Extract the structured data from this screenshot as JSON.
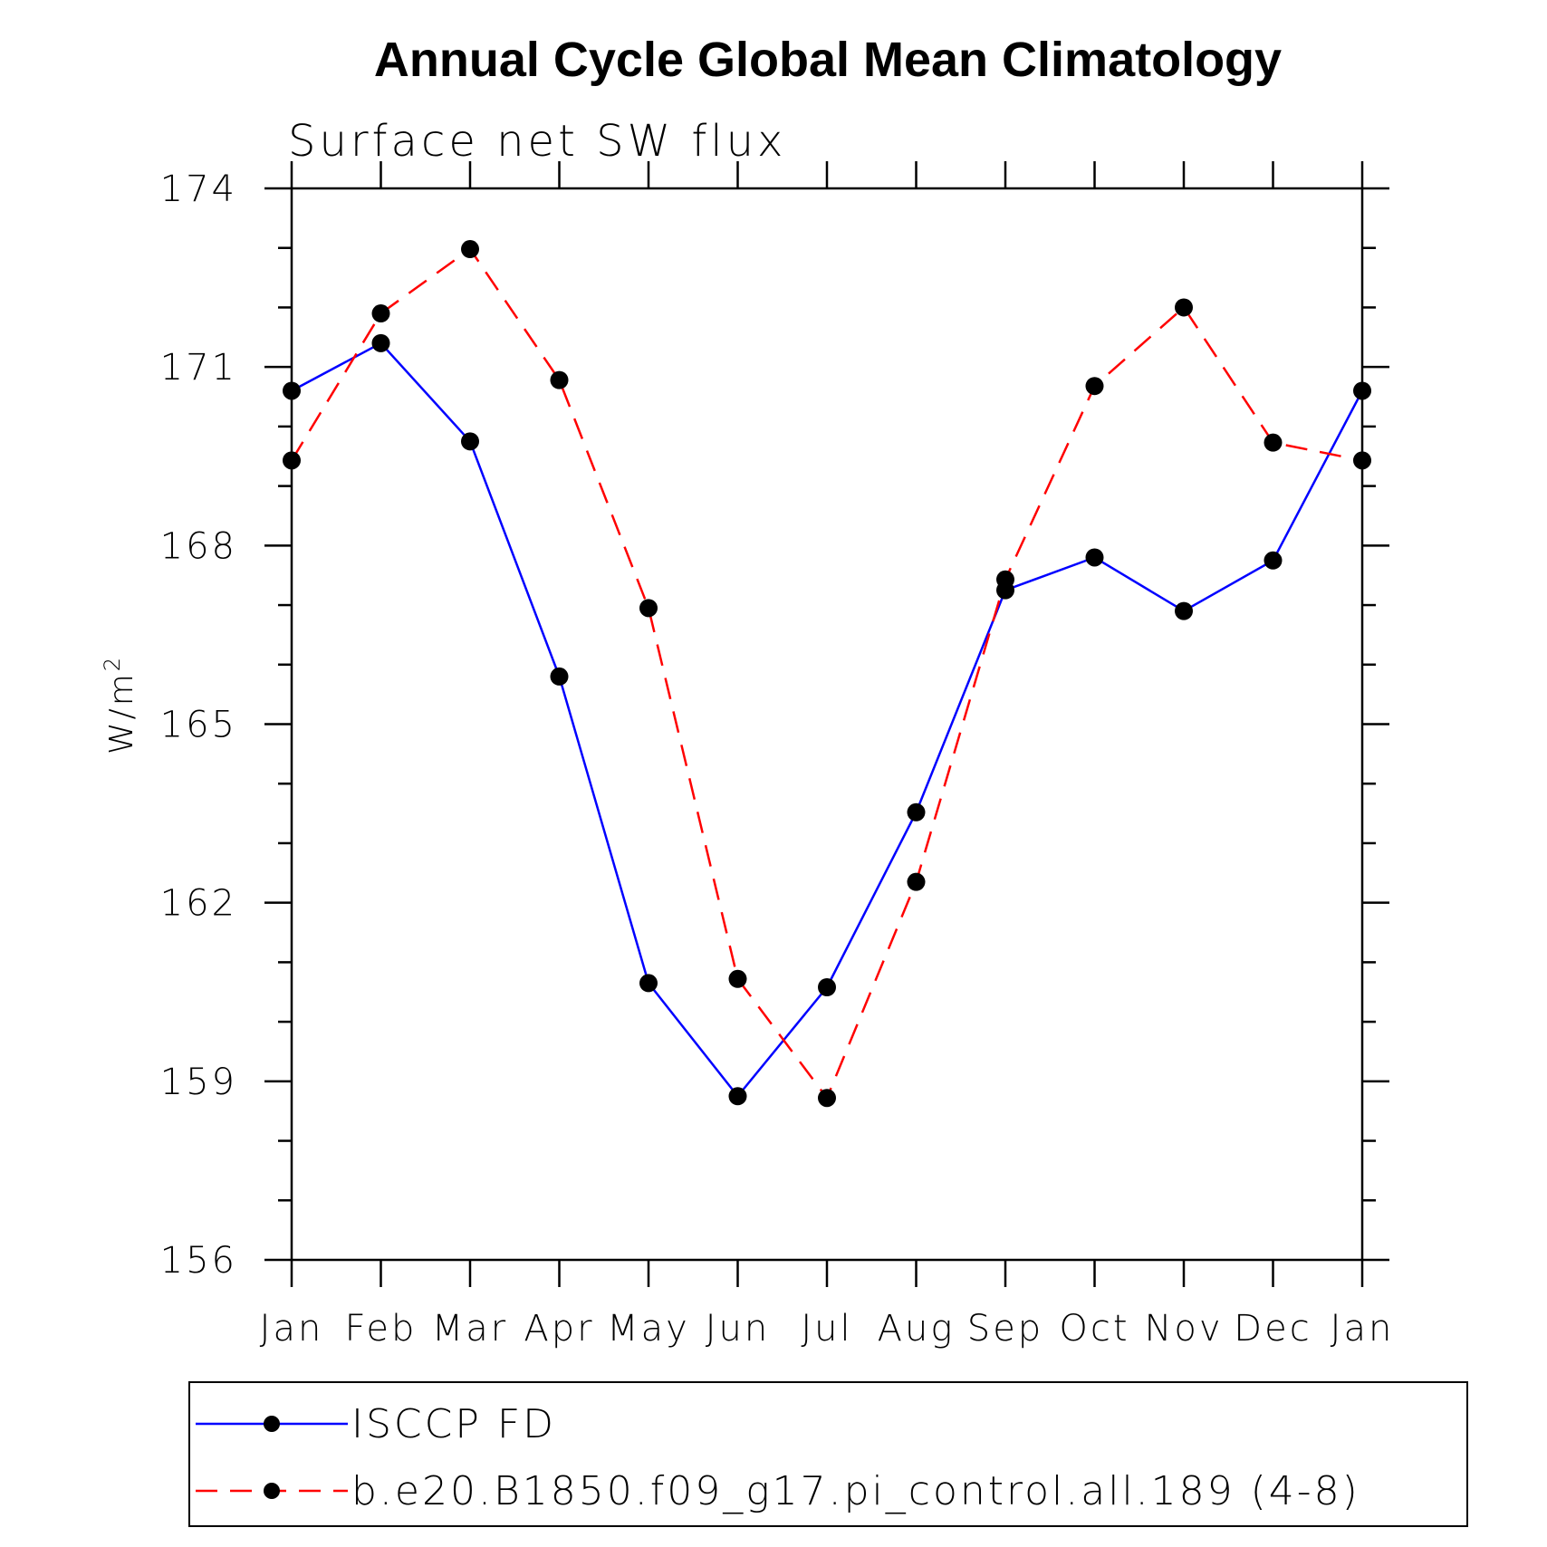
{
  "chart_data": {
    "type": "line",
    "title": "Annual Cycle Global Mean Climatology",
    "subtitle": "Surface net SW flux",
    "ylabel_base": "W/m",
    "ylabel_sup": "2",
    "ylim": [
      156,
      174
    ],
    "yticks": [
      "156",
      "159",
      "162",
      "165",
      "168",
      "171",
      "174"
    ],
    "ytick_values": [
      156,
      159,
      162,
      165,
      168,
      171,
      174
    ],
    "categories": [
      "Jan",
      "Feb",
      "Mar",
      "Apr",
      "May",
      "Jun",
      "Jul",
      "Aug",
      "Sep",
      "Oct",
      "Nov",
      "Dec",
      "Jan"
    ],
    "grid": false,
    "legend_placement": "bottom",
    "series": [
      {
        "name": "ISCCP FD",
        "color": "#0000ff",
        "dash": "solid",
        "values": [
          170.6,
          171.4,
          169.75,
          165.8,
          160.65,
          158.75,
          160.58,
          163.52,
          167.25,
          167.8,
          166.9,
          167.75,
          170.6
        ]
      },
      {
        "name": "b.e20.B1850.f09_g17.pi_control.all.189 (4-8)",
        "color": "#ff0000",
        "dash": "dashed",
        "values": [
          169.43,
          171.9,
          172.98,
          170.78,
          166.95,
          160.72,
          158.72,
          162.35,
          167.43,
          170.68,
          172.0,
          169.73,
          169.43
        ]
      }
    ]
  }
}
